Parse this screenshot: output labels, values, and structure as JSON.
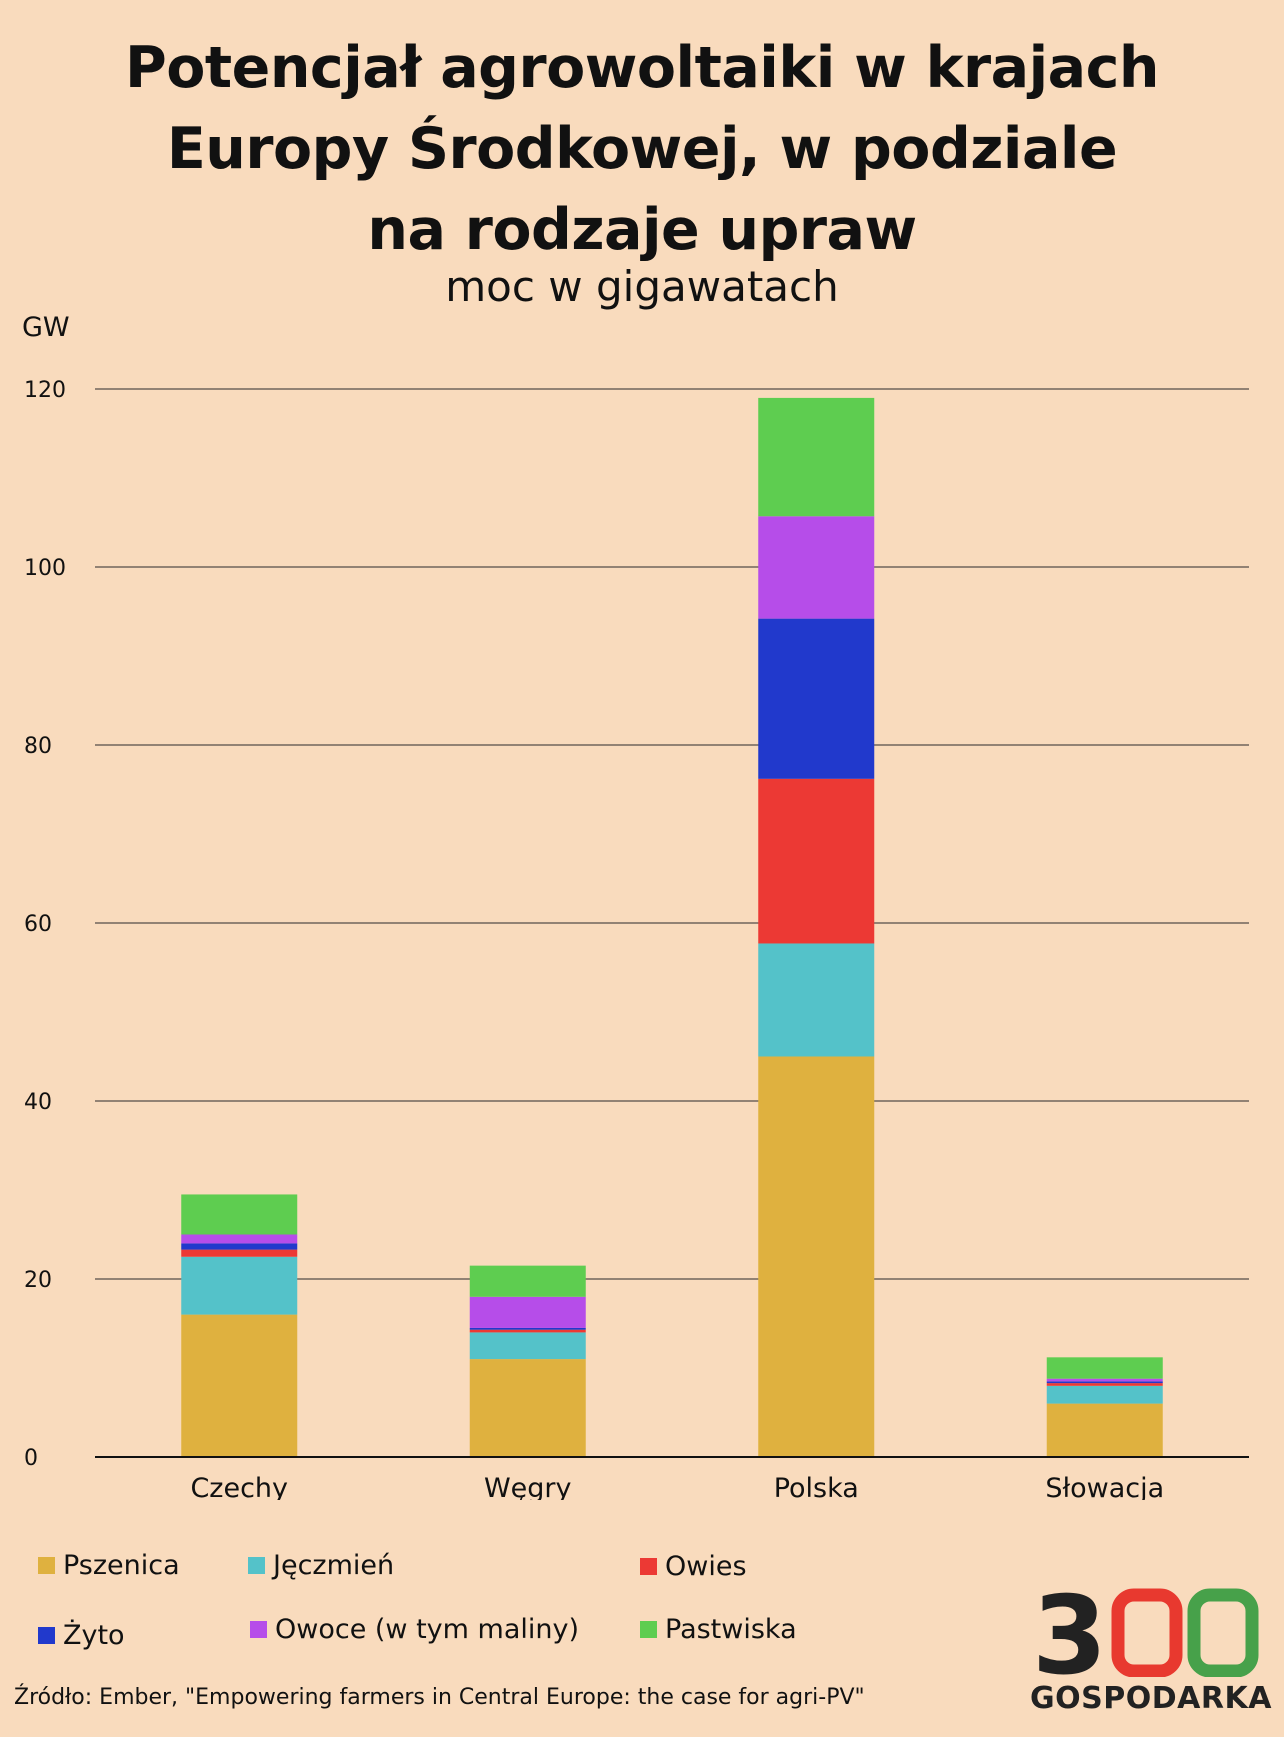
{
  "chart_data": {
    "type": "bar",
    "stacked": true,
    "title": "Potencjał agrowoltaiki w krajach Europy Środkowej, w podziale na rodzaje upraw",
    "subtitle": "moc w gigawatach",
    "ylabel": "GW",
    "xlabel": "",
    "ylim": [
      0,
      120
    ],
    "yticks": [
      0,
      20,
      40,
      60,
      80,
      100,
      120
    ],
    "grid": true,
    "legend_position": "bottom",
    "categories": [
      "Czechy",
      "Węgry",
      "Polska",
      "Słowacja"
    ],
    "series": [
      {
        "name": "Pszenica",
        "color": "#dfb13f",
        "values": [
          16,
          11,
          45,
          6
        ]
      },
      {
        "name": "Jęczmień",
        "color": "#54c2c9",
        "values": [
          6.5,
          3,
          12.7,
          2
        ]
      },
      {
        "name": "Owies",
        "color": "#ec3934",
        "values": [
          0.8,
          0.3,
          18.5,
          0.3
        ]
      },
      {
        "name": "Żyto",
        "color": "#2139cc",
        "values": [
          0.7,
          0.2,
          18,
          0.2
        ]
      },
      {
        "name": "Owoce (w tym maliny)",
        "color": "#b64de9",
        "values": [
          1,
          3.5,
          11.5,
          0.3
        ]
      },
      {
        "name": "Pastwiska",
        "color": "#5ecd50",
        "values": [
          4.5,
          3.5,
          13.3,
          2.4
        ]
      }
    ]
  },
  "source": "Źródło: Ember, \"Empowering farmers in Central Europe: the case for agri-PV\"",
  "logo": {
    "digit": "3",
    "word": "GOSPODARKA",
    "colors": {
      "dark": "#222222",
      "red": "#e8392f",
      "green": "#47a14a"
    }
  }
}
